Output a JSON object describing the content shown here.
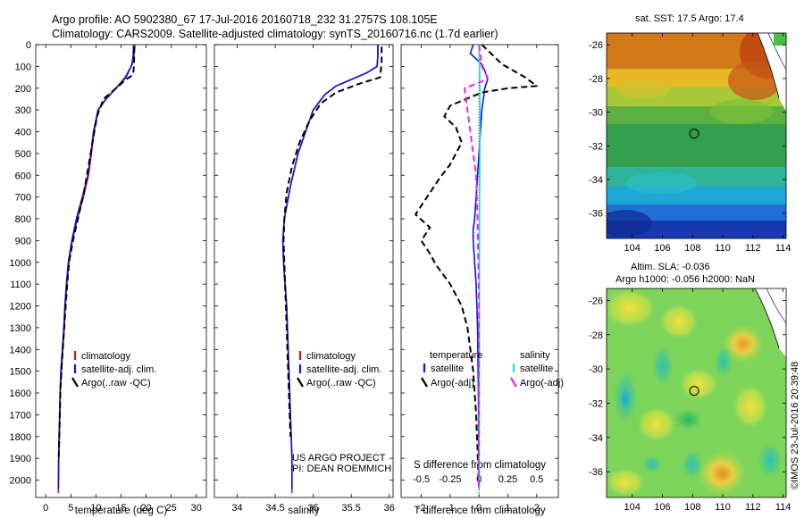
{
  "title": {
    "line1": "Argo profile: AO 5902380_67 17-Jul-2016 20160718_232 31.2757S 108.105E",
    "line2": "Climatology: CARS2009. Satellite-adjusted climatology: synTS_20160716.nc (1.7d earlier)"
  },
  "sidebar_text": "©IMOS 23-Jul-2016 20:39:48",
  "colors": {
    "climatology": "#e01010",
    "satellite": "#1010e8",
    "argo": "#000000",
    "sat_cyan": "#22dddd",
    "argo_magenta": "#ee22ee"
  },
  "chart_data": [
    {
      "id": "temperature",
      "type": "line",
      "xlabel": "temperature (deg C)",
      "ylabel": "",
      "xlim": [
        -2,
        32
      ],
      "ylim": [
        2080,
        0
      ],
      "xticks": [
        0,
        5,
        10,
        15,
        20,
        25,
        30
      ],
      "yticks": [
        0,
        100,
        200,
        300,
        400,
        500,
        600,
        700,
        800,
        900,
        1000,
        1100,
        1200,
        1300,
        1400,
        1500,
        1600,
        1700,
        1800,
        1900,
        2000
      ],
      "legend": [
        "climatology",
        "satellite-adj. clim.",
        "Argo(..raw -QC)"
      ],
      "legend_position": "lower-right",
      "series": [
        {
          "name": "climatology",
          "color": "#e01010",
          "style": "solid",
          "x": [
            17.8,
            17.6,
            17.0,
            15.8,
            14.0,
            12.0,
            10.5,
            9.6,
            9.1,
            8.5,
            7.5,
            6.3,
            5.3,
            4.6,
            4.2,
            3.9,
            3.7,
            3.4,
            3.1,
            2.9,
            2.8,
            2.7,
            2.6,
            2.5
          ],
          "y": [
            0,
            50,
            100,
            150,
            200,
            250,
            300,
            400,
            500,
            600,
            700,
            800,
            900,
            1000,
            1100,
            1200,
            1300,
            1400,
            1500,
            1600,
            1700,
            1800,
            1900,
            2060
          ]
        },
        {
          "name": "satellite-adj. clim.",
          "color": "#1010e8",
          "style": "solid",
          "x": [
            17.5,
            17.4,
            17.2,
            16.0,
            14.0,
            12.0,
            10.4,
            9.5,
            9.0,
            8.4,
            7.3,
            6.1,
            5.2,
            4.5,
            4.1,
            3.8,
            3.6,
            3.3,
            3.0,
            2.85,
            2.75,
            2.65,
            2.55,
            2.5
          ],
          "y": [
            0,
            50,
            90,
            150,
            200,
            250,
            300,
            400,
            500,
            600,
            700,
            800,
            900,
            1000,
            1100,
            1200,
            1300,
            1400,
            1500,
            1600,
            1700,
            1800,
            1900,
            2040
          ]
        },
        {
          "name": "Argo(..raw -QC)",
          "color": "#000000",
          "style": "dashed",
          "x": [
            17.6,
            17.6,
            17.5,
            17.3,
            16.0,
            13.5,
            11.5,
            10.2,
            9.3,
            8.5,
            7.6,
            6.5,
            5.6,
            4.7,
            4.3,
            4.0,
            3.7,
            3.4,
            3.1,
            2.9,
            2.8,
            2.7,
            2.6
          ],
          "y": [
            10,
            80,
            120,
            140,
            160,
            210,
            250,
            330,
            450,
            560,
            680,
            790,
            880,
            990,
            1090,
            1190,
            1290,
            1400,
            1500,
            1600,
            1700,
            1800,
            1900
          ]
        }
      ]
    },
    {
      "id": "salinity",
      "type": "line",
      "xlabel": "salinity",
      "ylabel": "",
      "xlim": [
        33.7,
        36.05
      ],
      "ylim": [
        2080,
        0
      ],
      "xticks": [
        34,
        34.5,
        35,
        35.5,
        36
      ],
      "legend": [
        "climatology",
        "satellite-adj. clim.",
        "Argo(..raw -QC)"
      ],
      "legend_position": "lower-right",
      "annotation": [
        "US ARGO PROJECT",
        "PI: DEAN ROEMMICH"
      ],
      "series": [
        {
          "name": "climatology",
          "color": "#e01010",
          "style": "solid",
          "x": [
            35.85,
            35.85,
            35.84,
            35.7,
            35.5,
            35.3,
            35.15,
            35.0,
            34.9,
            34.8,
            34.7,
            34.62,
            34.6,
            34.61,
            34.63,
            34.65,
            34.66,
            34.67,
            34.68,
            34.69,
            34.7,
            34.71,
            34.72,
            34.72
          ],
          "y": [
            0,
            50,
            100,
            130,
            160,
            190,
            230,
            300,
            400,
            500,
            650,
            800,
            900,
            1000,
            1100,
            1200,
            1300,
            1400,
            1500,
            1600,
            1700,
            1800,
            1900,
            2060
          ]
        },
        {
          "name": "satellite-adj. clim.",
          "color": "#1010e8",
          "style": "solid",
          "x": [
            35.85,
            35.85,
            35.84,
            35.7,
            35.5,
            35.3,
            35.15,
            35.0,
            34.9,
            34.8,
            34.7,
            34.62,
            34.6,
            34.61,
            34.63,
            34.65,
            34.66,
            34.67,
            34.68,
            34.69,
            34.7,
            34.71,
            34.72,
            34.72
          ],
          "y": [
            0,
            50,
            100,
            130,
            160,
            190,
            230,
            300,
            400,
            500,
            650,
            800,
            900,
            1000,
            1100,
            1200,
            1300,
            1400,
            1500,
            1600,
            1700,
            1800,
            1900,
            2040
          ]
        },
        {
          "name": "Argo(..raw -QC)",
          "color": "#000000",
          "style": "dashed",
          "x": [
            35.9,
            35.9,
            35.88,
            35.6,
            35.3,
            35.1,
            34.95,
            34.82,
            34.72,
            34.65,
            34.62,
            34.61,
            34.62,
            34.63,
            34.64,
            34.65,
            34.66,
            34.67,
            34.68,
            34.69,
            34.7
          ],
          "y": [
            10,
            80,
            150,
            180,
            220,
            270,
            350,
            450,
            560,
            680,
            800,
            900,
            1000,
            1100,
            1200,
            1300,
            1400,
            1500,
            1600,
            1700,
            1800
          ]
        }
      ]
    },
    {
      "id": "difference",
      "type": "line",
      "xlabel": "T difference from climatology",
      "xlabel2": "S difference from climatology",
      "xlim": [
        -2.7,
        2.75
      ],
      "ylim": [
        2080,
        0
      ],
      "xticks": [
        -2,
        -1,
        0,
        1,
        2
      ],
      "xticks2": [
        -0.5,
        -0.25,
        0,
        0.25,
        0.5
      ],
      "legend": {
        "temperature_title": "temperature",
        "salinity_title": "salinity",
        "items": [
          "satellite",
          "Argo(-adj)",
          "satellite",
          "Argo(-adj)"
        ]
      },
      "series": [
        {
          "name": "temperature satellite",
          "color": "#1010e8",
          "style": "solid",
          "x": [
            -0.2,
            -0.3,
            0.1,
            0.2,
            0.3,
            0.2,
            0.1,
            0.05,
            0,
            -0.05,
            -0.1,
            -0.15,
            -0.2,
            -0.2,
            -0.15,
            -0.1,
            -0.05,
            -0.02,
            0
          ],
          "y": [
            0,
            40,
            90,
            120,
            160,
            200,
            300,
            400,
            500,
            600,
            700,
            800,
            850,
            900,
            1000,
            1100,
            1300,
            1600,
            2040
          ]
        },
        {
          "name": "temperature Argo(-adj)",
          "color": "#000000",
          "style": "dashed",
          "x": [
            0.1,
            0.8,
            1.6,
            2.0,
            1.0,
            0.1,
            -1.0,
            -1.2,
            -0.8,
            -0.6,
            -1.0,
            -1.4,
            -1.8,
            -2.2,
            -1.7,
            -2.0,
            -1.7,
            -1.5,
            -1.0,
            -0.6,
            -0.4,
            -0.2,
            -0.1,
            0
          ],
          "y": [
            0,
            90,
            150,
            190,
            200,
            220,
            280,
            330,
            380,
            450,
            550,
            620,
            700,
            780,
            840,
            900,
            960,
            1010,
            1100,
            1200,
            1300,
            1500,
            1700,
            2040
          ]
        },
        {
          "name": "salinity satellite",
          "color": "#22dddd",
          "style": "solid",
          "x": [
            0,
            0.02,
            0.03,
            0.03,
            0.025,
            0.02,
            0.015,
            0.01,
            0.005,
            0
          ],
          "y": [
            0,
            100,
            200,
            400,
            600,
            800,
            1000,
            1300,
            1700,
            2040
          ]
        },
        {
          "name": "salinity Argo(-adj)",
          "color": "#ee22ee",
          "style": "dashed",
          "x": [
            0,
            0.1,
            0.3,
            0.1,
            -0.5,
            -0.4,
            -0.3,
            -0.2,
            -0.1,
            -0.05,
            0,
            0
          ],
          "y": [
            0,
            100,
            150,
            170,
            200,
            300,
            400,
            500,
            600,
            800,
            1200,
            2040
          ]
        }
      ]
    },
    {
      "id": "sst-map",
      "type": "heatmap",
      "title": "sat. SST: 17.5  Argo: 17.4",
      "xlim": [
        102.3,
        114.2
      ],
      "ylim": [
        -37.5,
        -25.3
      ],
      "xticks": [
        104,
        106,
        108,
        110,
        112,
        114
      ],
      "yticks": [
        -26,
        -28,
        -30,
        -32,
        -34,
        -36
      ],
      "marker": {
        "x": 108.105,
        "y": -31.2757
      }
    },
    {
      "id": "sla-map",
      "type": "heatmap",
      "title": "Altim. SLA: -0.036",
      "subtitle": "Argo h1000: -0.056 h2000: NaN",
      "xlim": [
        102.3,
        114.2
      ],
      "ylim": [
        -37.5,
        -25.3
      ],
      "xticks": [
        104,
        106,
        108,
        110,
        112,
        114
      ],
      "yticks": [
        -26,
        -28,
        -30,
        -32,
        -34,
        -36
      ],
      "marker": {
        "x": 108.105,
        "y": -31.2757
      }
    }
  ]
}
